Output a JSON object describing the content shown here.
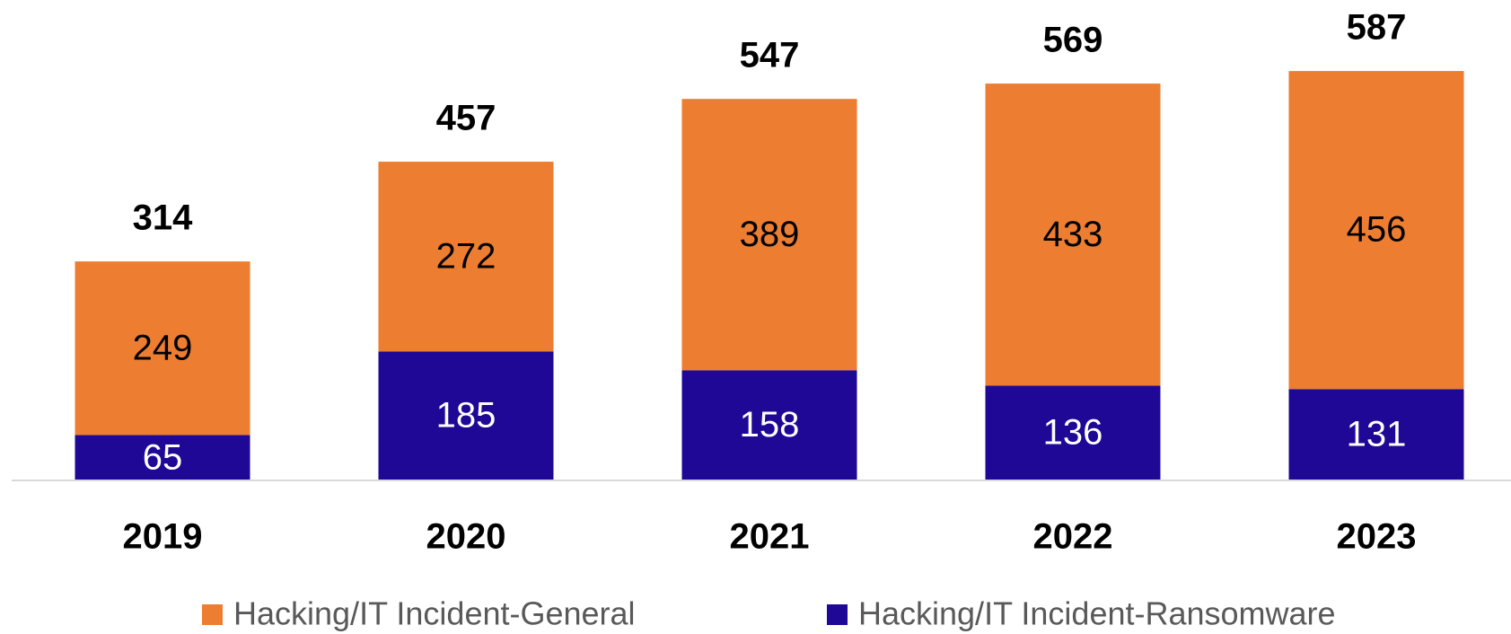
{
  "chart_data": {
    "type": "stacked_bar",
    "categories": [
      "2019",
      "2020",
      "2021",
      "2022",
      "2023"
    ],
    "series": [
      {
        "name": "Hacking/IT Incident-Ransomware",
        "color": "#200896",
        "values": [
          65,
          185,
          158,
          136,
          131
        ]
      },
      {
        "name": "Hacking/IT Incident-General",
        "color": "#ED7D31",
        "values": [
          249,
          272,
          389,
          433,
          456
        ]
      }
    ],
    "totals": [
      314,
      457,
      547,
      569,
      587
    ],
    "ylim": [
      0,
      600
    ]
  }
}
